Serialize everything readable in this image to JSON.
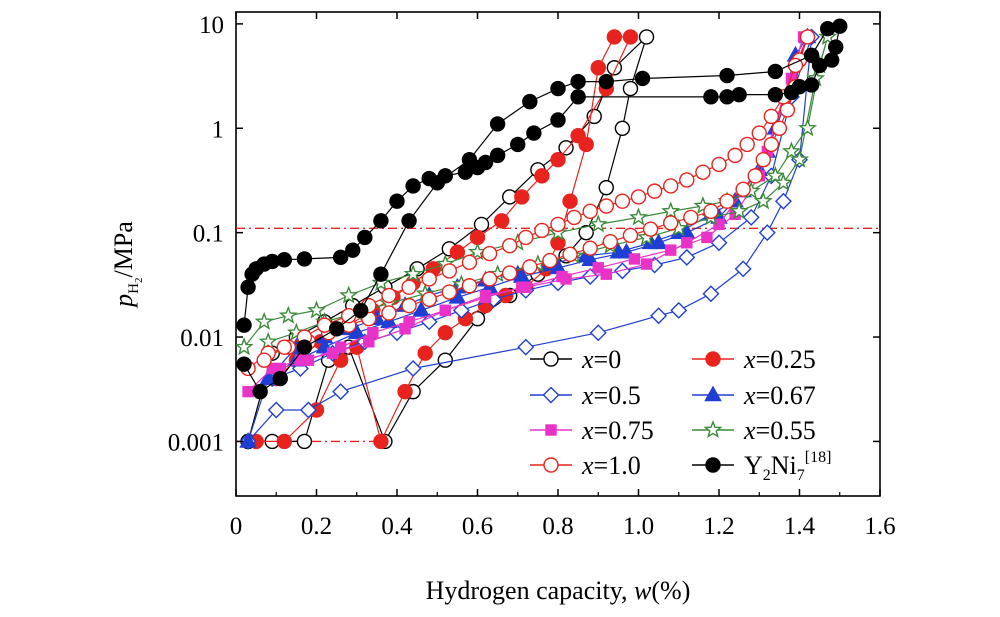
{
  "chart_data": {
    "type": "scatter",
    "title": "",
    "xlabel_prefix": "Hydrogen capacity, ",
    "xlabel_var": "w",
    "xlabel_suffix": "(%)",
    "ylabel_var": "p",
    "ylabel_sub": "H",
    "ylabel_subsub": "2",
    "ylabel_unit": "/MPa",
    "xlim": [
      0,
      1.6
    ],
    "ylim": [
      0.0003,
      13
    ],
    "y_scale": "log",
    "x_ticks": [
      0,
      0.2,
      0.4,
      0.6,
      0.8,
      1.0,
      1.2,
      1.4,
      1.6
    ],
    "x_tick_labels": [
      "0",
      "0.2",
      "0.4",
      "0.6",
      "0.8",
      "1.0",
      "1.2",
      "1.4",
      "1.6"
    ],
    "y_ticks": [
      0.001,
      0.01,
      0.1,
      1,
      10
    ],
    "y_tick_labels": [
      "0.001",
      "0.01",
      "0.1",
      "1",
      "10"
    ],
    "reference_lines": [
      {
        "y": 0.11,
        "x_range": [
          0,
          1.6
        ],
        "color": "#e8231e"
      },
      {
        "y": 0.001,
        "x_range": [
          0,
          0.36
        ],
        "color": "#e8231e"
      }
    ],
    "series": [
      {
        "name": "x=0",
        "var": "x",
        "eq": "=0",
        "color": "#000000",
        "marker": "circle",
        "filled": false,
        "x": [
          0.03,
          0.09,
          0.17,
          0.23,
          0.28,
          0.37,
          0.44,
          0.52,
          0.6,
          0.68,
          0.75,
          0.82,
          0.87,
          0.92,
          0.96,
          0.98,
          1.02,
          0.94,
          0.89,
          0.82,
          0.75,
          0.68,
          0.61,
          0.53,
          0.45,
          0.37,
          0.29,
          0.22,
          0.15,
          0.09,
          0.03
        ],
        "y": [
          0.001,
          0.001,
          0.001,
          0.006,
          0.008,
          0.001,
          0.003,
          0.006,
          0.015,
          0.025,
          0.04,
          0.06,
          0.1,
          0.27,
          1.0,
          2.4,
          7.5,
          3.8,
          1.3,
          0.65,
          0.4,
          0.22,
          0.12,
          0.07,
          0.045,
          0.03,
          0.02,
          0.014,
          0.01,
          0.007,
          0.001
        ]
      },
      {
        "name": "x=0.25",
        "var": "x",
        "eq": "=0.25",
        "color": "#e8231e",
        "marker": "circle",
        "filled": true,
        "x": [
          0.05,
          0.12,
          0.2,
          0.26,
          0.3,
          0.36,
          0.42,
          0.47,
          0.52,
          0.57,
          0.62,
          0.67,
          0.72,
          0.77,
          0.8,
          0.83,
          0.87,
          0.9,
          0.94,
          0.98,
          0.92,
          0.85,
          0.8,
          0.76,
          0.71,
          0.66,
          0.6,
          0.55,
          0.49,
          0.44,
          0.39,
          0.34,
          0.28,
          0.21,
          0.15,
          0.1
        ],
        "y": [
          0.001,
          0.001,
          0.002,
          0.006,
          0.008,
          0.001,
          0.003,
          0.007,
          0.011,
          0.015,
          0.02,
          0.025,
          0.03,
          0.045,
          0.08,
          0.2,
          0.7,
          3.8,
          7.5,
          7.5,
          2.4,
          0.85,
          0.5,
          0.35,
          0.22,
          0.13,
          0.09,
          0.065,
          0.045,
          0.033,
          0.024,
          0.018,
          0.013,
          0.009,
          0.006,
          0.004
        ]
      },
      {
        "name": "x=0.5",
        "var": "x",
        "eq": "=0.5",
        "color": "#1f3fd4",
        "marker": "diamond",
        "filled": false,
        "x": [
          0.03,
          0.1,
          0.18,
          0.26,
          0.44,
          0.72,
          0.9,
          1.05,
          1.1,
          1.18,
          1.26,
          1.32,
          1.36,
          1.4,
          1.43,
          1.38,
          1.33,
          1.28,
          1.2,
          1.12,
          1.04,
          0.96,
          0.88,
          0.8,
          0.72,
          0.64,
          0.56,
          0.48,
          0.4,
          0.32,
          0.24,
          0.16,
          0.09
        ],
        "y": [
          0.001,
          0.002,
          0.002,
          0.003,
          0.005,
          0.008,
          0.011,
          0.016,
          0.018,
          0.026,
          0.045,
          0.1,
          0.2,
          0.5,
          7.5,
          2.0,
          0.35,
          0.14,
          0.08,
          0.058,
          0.049,
          0.043,
          0.038,
          0.033,
          0.028,
          0.023,
          0.018,
          0.014,
          0.011,
          0.009,
          0.007,
          0.005,
          0.004
        ]
      },
      {
        "name": "x=0.67",
        "var": "x",
        "eq": "=0.67",
        "color": "#1f3fd4",
        "marker": "triangle",
        "filled": true,
        "x": [
          0.03,
          0.08,
          0.15,
          0.22,
          0.28,
          0.35,
          0.42,
          0.48,
          0.55,
          0.62,
          0.7,
          0.78,
          0.87,
          0.95,
          1.03,
          1.1,
          1.18,
          1.24,
          1.3,
          1.34,
          1.39,
          1.42,
          1.38,
          1.32,
          1.26,
          1.2,
          1.12,
          1.05,
          0.97,
          0.88,
          0.8,
          0.71,
          0.63,
          0.55,
          0.46,
          0.38,
          0.3,
          0.22,
          0.15,
          0.08
        ],
        "y": [
          0.001,
          0.004,
          0.008,
          0.01,
          0.012,
          0.015,
          0.02,
          0.025,
          0.03,
          0.035,
          0.04,
          0.05,
          0.06,
          0.065,
          0.08,
          0.1,
          0.15,
          0.2,
          0.4,
          1.0,
          5.0,
          7.5,
          2.5,
          0.6,
          0.25,
          0.14,
          0.1,
          0.08,
          0.065,
          0.055,
          0.046,
          0.038,
          0.03,
          0.024,
          0.018,
          0.014,
          0.011,
          0.008,
          0.006,
          0.004
        ]
      },
      {
        "name": "x=0.75",
        "var": "x",
        "eq": "=0.75",
        "color": "#e832c8",
        "marker": "square",
        "filled": true,
        "x": [
          0.03,
          0.09,
          0.16,
          0.24,
          0.33,
          0.42,
          0.52,
          0.62,
          0.72,
          0.82,
          0.92,
          1.02,
          1.12,
          1.2,
          1.26,
          1.32,
          1.38,
          1.41,
          1.36,
          1.3,
          1.24,
          1.17,
          1.08,
          0.99,
          0.9,
          0.81,
          0.71,
          0.62,
          0.52,
          0.43,
          0.34,
          0.26,
          0.18,
          0.11
        ],
        "y": [
          0.003,
          0.005,
          0.006,
          0.007,
          0.009,
          0.012,
          0.018,
          0.025,
          0.03,
          0.036,
          0.04,
          0.05,
          0.08,
          0.12,
          0.25,
          0.6,
          3.0,
          7.5,
          2.0,
          0.35,
          0.15,
          0.09,
          0.068,
          0.056,
          0.046,
          0.038,
          0.03,
          0.024,
          0.018,
          0.014,
          0.011,
          0.008,
          0.006,
          0.005
        ]
      },
      {
        "name": "x=0.55",
        "var": "x",
        "eq": "=0.55",
        "color": "#3a8a3a",
        "marker": "star",
        "filled": false,
        "x": [
          0.02,
          0.07,
          0.13,
          0.2,
          0.28,
          0.36,
          0.44,
          0.52,
          0.6,
          0.7,
          0.8,
          0.9,
          1.0,
          1.08,
          1.16,
          1.22,
          1.28,
          1.34,
          1.38,
          1.42,
          1.45,
          1.47,
          1.44,
          1.4,
          1.36,
          1.31,
          1.25,
          1.18,
          1.1,
          1.02,
          0.93,
          0.84,
          0.75,
          0.65,
          0.56,
          0.47,
          0.38,
          0.3,
          0.22,
          0.15,
          0.08
        ],
        "y": [
          0.008,
          0.014,
          0.016,
          0.018,
          0.025,
          0.033,
          0.04,
          0.05,
          0.065,
          0.08,
          0.1,
          0.12,
          0.14,
          0.16,
          0.18,
          0.2,
          0.25,
          0.35,
          0.6,
          1.0,
          4.0,
          7.5,
          3.0,
          0.5,
          0.3,
          0.2,
          0.16,
          0.14,
          0.11,
          0.09,
          0.075,
          0.06,
          0.05,
          0.04,
          0.032,
          0.026,
          0.021,
          0.017,
          0.014,
          0.011,
          0.009
        ]
      },
      {
        "name": "x=1.0",
        "var": "x",
        "eq": "=1.0",
        "color": "#e8231e",
        "marker": "circle",
        "filled": false,
        "x": [
          0.03,
          0.08,
          0.13,
          0.18,
          0.23,
          0.28,
          0.33,
          0.38,
          0.43,
          0.48,
          0.53,
          0.58,
          0.63,
          0.68,
          0.73,
          0.78,
          0.83,
          0.88,
          0.93,
          0.98,
          1.03,
          1.08,
          1.13,
          1.18,
          1.22,
          1.26,
          1.29,
          1.31,
          1.33,
          1.35,
          1.37,
          1.39,
          1.4,
          1.42,
          1.39,
          1.36,
          1.33,
          1.3,
          1.27,
          1.24,
          1.2,
          1.16,
          1.12,
          1.08,
          1.04,
          1.0,
          0.96,
          0.92,
          0.88,
          0.84,
          0.8,
          0.76,
          0.72,
          0.68,
          0.63,
          0.58,
          0.53,
          0.48,
          0.43,
          0.38,
          0.33,
          0.28,
          0.22,
          0.17,
          0.12,
          0.07
        ],
        "y": [
          0.005,
          0.007,
          0.008,
          0.009,
          0.011,
          0.013,
          0.015,
          0.017,
          0.02,
          0.023,
          0.027,
          0.031,
          0.036,
          0.041,
          0.047,
          0.054,
          0.062,
          0.071,
          0.082,
          0.094,
          0.108,
          0.124,
          0.14,
          0.16,
          0.2,
          0.26,
          0.35,
          0.5,
          0.7,
          1.0,
          1.5,
          2.5,
          4.5,
          7.5,
          4.0,
          2.0,
          1.3,
          0.9,
          0.7,
          0.55,
          0.45,
          0.38,
          0.32,
          0.28,
          0.25,
          0.22,
          0.2,
          0.18,
          0.16,
          0.14,
          0.12,
          0.105,
          0.09,
          0.075,
          0.063,
          0.052,
          0.043,
          0.036,
          0.03,
          0.025,
          0.02,
          0.016,
          0.013,
          0.01,
          0.008,
          0.006
        ]
      },
      {
        "name": "Y2Ni7[18]",
        "eq": "",
        "label_main": "Y",
        "label_sub1": "2",
        "label_mid": "Ni",
        "label_sub2": "7",
        "label_sup": "[18]",
        "color": "#000000",
        "marker": "circle",
        "filled": true,
        "x": [
          0.02,
          0.03,
          0.04,
          0.05,
          0.07,
          0.09,
          0.12,
          0.17,
          0.26,
          0.29,
          0.32,
          0.36,
          0.4,
          0.44,
          0.48,
          0.52,
          0.57,
          0.6,
          0.62,
          0.65,
          0.7,
          0.74,
          0.8,
          0.85,
          1.18,
          1.22,
          1.25,
          1.34,
          1.38,
          1.4,
          1.43,
          1.45,
          1.48,
          1.49,
          1.5,
          1.47,
          1.43,
          1.34,
          1.22,
          1.01,
          0.92,
          0.85,
          0.8,
          0.73,
          0.65,
          0.58,
          0.5,
          0.43,
          0.36,
          0.31,
          0.25,
          0.17,
          0.11,
          0.06,
          0.02
        ],
        "y": [
          0.013,
          0.03,
          0.04,
          0.045,
          0.05,
          0.053,
          0.055,
          0.056,
          0.058,
          0.068,
          0.09,
          0.13,
          0.2,
          0.28,
          0.33,
          0.35,
          0.38,
          0.42,
          0.47,
          0.55,
          0.7,
          0.9,
          1.2,
          2.0,
          2.0,
          2.0,
          2.1,
          2.1,
          2.2,
          2.5,
          2.6,
          4.0,
          4.5,
          6.0,
          9.5,
          9.0,
          5.0,
          3.5,
          3.2,
          3.0,
          2.8,
          2.8,
          2.4,
          1.8,
          1.1,
          0.5,
          0.3,
          0.13,
          0.04,
          0.018,
          0.012,
          0.008,
          0.004,
          0.003,
          0.0055
        ]
      }
    ]
  }
}
